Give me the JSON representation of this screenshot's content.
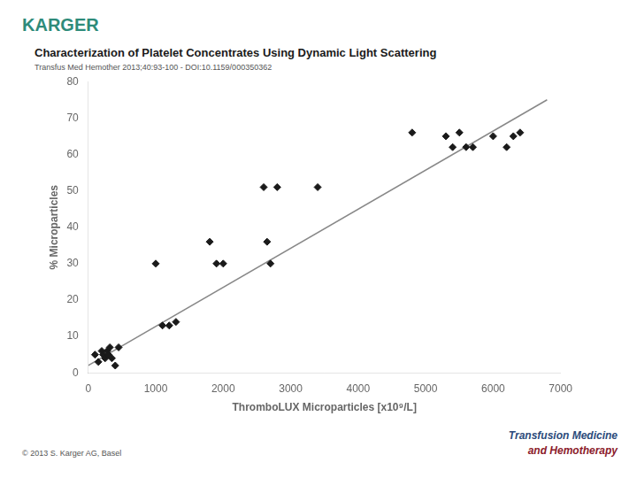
{
  "chart_data": {
    "type": "scatter",
    "title": "Characterization of Platelet Concentrates Using Dynamic Light Scattering",
    "subtitle": "Transfus Med Hemother 2013;40:93-100 -  DOI:10.1159/000350362",
    "xlabel": "ThromboLUX Microparticles [x10⁹/L]",
    "ylabel": "% Microparticles",
    "xlim": [
      0,
      7000
    ],
    "ylim": [
      0,
      80
    ],
    "xticks": [
      0,
      1000,
      2000,
      3000,
      4000,
      5000,
      6000,
      7000
    ],
    "yticks": [
      0,
      10,
      20,
      30,
      40,
      50,
      60,
      70,
      80
    ],
    "grid": false,
    "series": [
      {
        "type": "line",
        "color": "#888888",
        "line_style": "solid",
        "x": [
          0,
          6800
        ],
        "values": [
          2,
          75
        ]
      },
      {
        "type": "scatter",
        "color": "#1a1a1a",
        "marker": "diamond",
        "x": [
          100,
          150,
          200,
          220,
          250,
          280,
          300,
          320,
          350,
          400,
          450,
          1000,
          1100,
          1200,
          1300,
          1800,
          1900,
          2000,
          2600,
          2650,
          2700,
          2800,
          3400,
          4800,
          5300,
          5400,
          5500,
          5600,
          5700,
          6000,
          6200,
          6300,
          6400
        ],
        "values": [
          5,
          3,
          6,
          5,
          4,
          6,
          5,
          7,
          4,
          2,
          7,
          30,
          13,
          13,
          14,
          36,
          30,
          30,
          51,
          36,
          30,
          51,
          51,
          66,
          65,
          62,
          66,
          62,
          62,
          65,
          62,
          65,
          66
        ]
      }
    ],
    "annotations": [
      {
        "text": "KARGER",
        "color": "#2e8b7a"
      },
      {
        "text": "© 2013 S. Karger AG, Basel",
        "color": "#555555"
      },
      {
        "text": "Transfusion Medicine",
        "color": "#2b4a7a"
      },
      {
        "text": "and Hemotherapy",
        "color": "#8b1a2a"
      }
    ]
  }
}
